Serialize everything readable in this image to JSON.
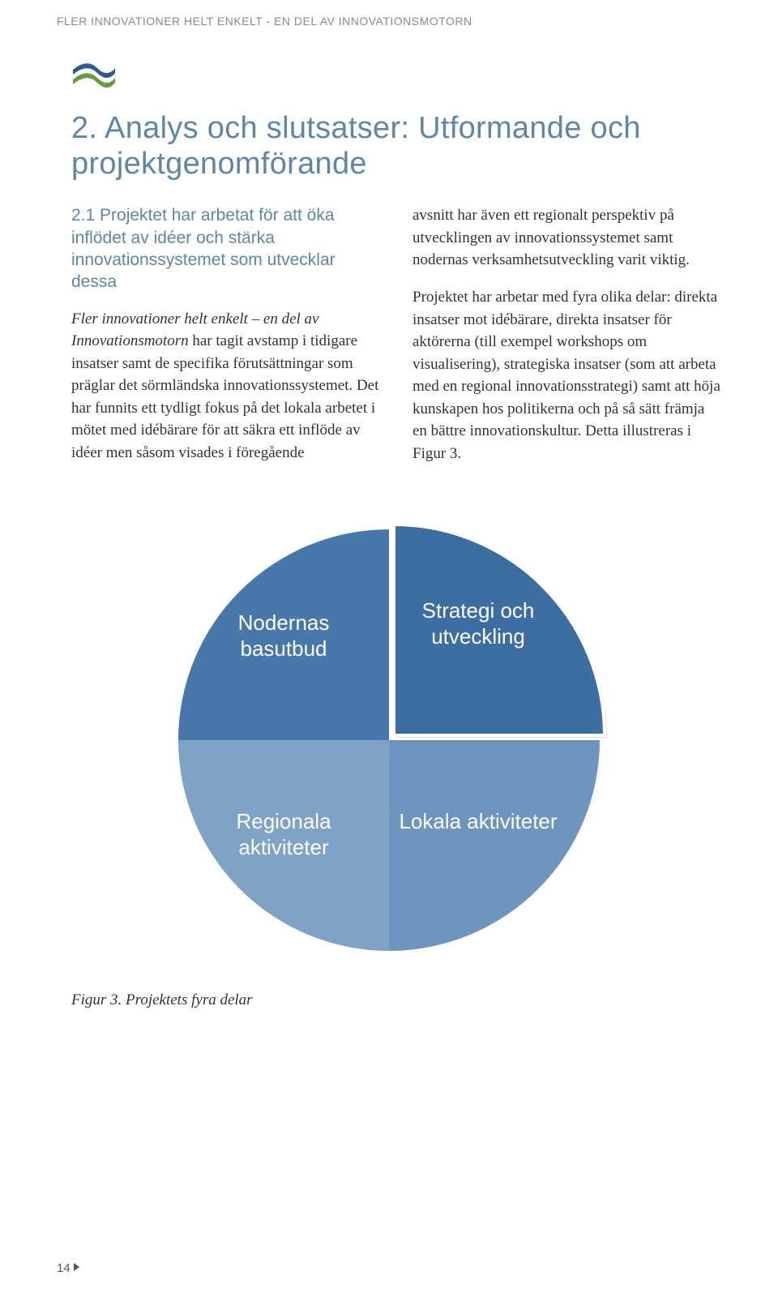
{
  "running_head": "FLER INNOVATIONER HELT ENKELT - EN DEL AV INNOVATIONSMOTORN",
  "logo": {
    "top_wave_color": "#2f5b8f",
    "bottom_wave_color": "#6a9a3f",
    "width": 56,
    "height": 36
  },
  "section_title": "2. Analys och slutsatser: Utformande och projektgenomförande",
  "title_color": "#5f86a7",
  "subhead": "2.1 Projektet har arbetat för att öka inflödet av idéer och stärka innovationssystemet som utvecklar dessa",
  "left_col": {
    "lead_italic": "Fler innovationer helt enkelt – en del av Innovationsmotorn",
    "para1_rest": " har tagit avstamp i tidigare insatser samt de specifika förutsättningar som präglar det sörmländska innovationssystemet. Det har funnits ett tydligt fokus på det lokala arbetet i mötet med idébärare för att säkra ett inflöde av idéer men såsom visades i föregående"
  },
  "right_col": {
    "para1": "avsnitt har även ett regionalt perspektiv på utvecklingen av innovationssystemet samt nodernas verksamhetsutveckling varit viktig.",
    "para2": "Projektet har arbetar med fyra olika delar: direkta insatser mot idébärare, direkta insatser för aktörerna (till exempel workshops om visualisering), strategiska insatser (som att arbeta med en regional innovationsstrategi) samt att höja kunskapen hos politikerna och på så sätt främja en bättre innovationskultur. Detta illustreras i Figur 3."
  },
  "chart": {
    "type": "pie-quadrant",
    "diameter": 520,
    "background": "#ffffff",
    "text_color": "#ffffff",
    "label_fontsize": 26,
    "quadrants": [
      {
        "key": "tl",
        "label": "Nodernas basutbud",
        "color": "#4878ab"
      },
      {
        "key": "tr",
        "label": "Strategi och utveckling",
        "color": "#3d6ea3",
        "raised": true,
        "stroke": "#ffffff",
        "stroke_width": 4
      },
      {
        "key": "bl",
        "label": "Regionala aktiviteter",
        "color": "#7fa3c6"
      },
      {
        "key": "br",
        "label": "Lokala aktiviteter",
        "color": "#6e95bd"
      }
    ]
  },
  "figure_caption": "Figur 3. Projektets fyra delar",
  "page_number": "14"
}
